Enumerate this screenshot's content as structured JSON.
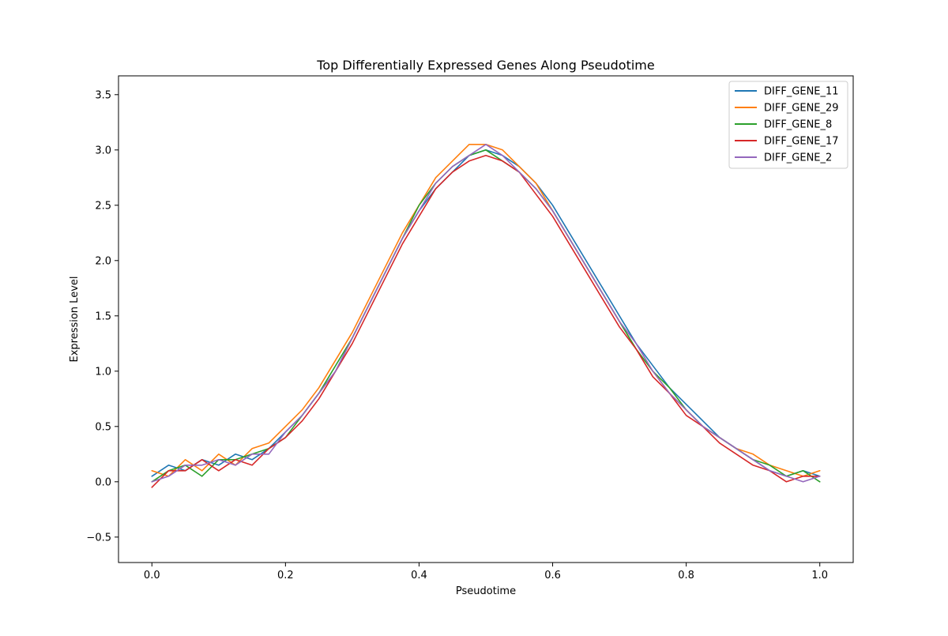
{
  "chart_data": {
    "type": "line",
    "title": "Top Differentially Expressed Genes Along Pseudotime",
    "xlabel": "Pseudotime",
    "ylabel": "Expression Level",
    "xlim": [
      -0.05,
      1.05
    ],
    "ylim": [
      -0.73,
      3.67
    ],
    "xticks": [
      0.0,
      0.2,
      0.4,
      0.6,
      0.8,
      1.0
    ],
    "xtick_labels": [
      "0.0",
      "0.2",
      "0.4",
      "0.6",
      "0.8",
      "1.0"
    ],
    "yticks": [
      -0.5,
      0.0,
      0.5,
      1.0,
      1.5,
      2.0,
      2.5,
      3.0,
      3.5
    ],
    "ytick_labels": [
      "−0.5",
      "0.0",
      "0.5",
      "1.0",
      "1.5",
      "2.0",
      "2.5",
      "3.0",
      "3.5"
    ],
    "grid": false,
    "legend_position": "top-right",
    "x": [
      0.0,
      0.025,
      0.05,
      0.075,
      0.1,
      0.125,
      0.15,
      0.175,
      0.2,
      0.225,
      0.25,
      0.275,
      0.3,
      0.325,
      0.35,
      0.375,
      0.4,
      0.425,
      0.45,
      0.475,
      0.5,
      0.525,
      0.55,
      0.575,
      0.6,
      0.625,
      0.65,
      0.675,
      0.7,
      0.725,
      0.75,
      0.775,
      0.8,
      0.825,
      0.85,
      0.875,
      0.9,
      0.925,
      0.95,
      0.975,
      1.0
    ],
    "series": [
      {
        "name": "DIFF_GENE_11",
        "color": "#1f77b4",
        "values": [
          0.05,
          0.15,
          0.1,
          0.2,
          0.15,
          0.25,
          0.2,
          0.3,
          0.45,
          0.6,
          0.8,
          1.0,
          1.3,
          1.6,
          1.9,
          2.2,
          2.45,
          2.65,
          2.8,
          2.95,
          3.0,
          2.95,
          2.85,
          2.7,
          2.5,
          2.25,
          2.0,
          1.75,
          1.5,
          1.25,
          1.05,
          0.85,
          0.7,
          0.55,
          0.4,
          0.3,
          0.2,
          0.1,
          0.05,
          0.1,
          0.05
        ]
      },
      {
        "name": "DIFF_GENE_29",
        "color": "#ff7f0e",
        "values": [
          0.1,
          0.05,
          0.2,
          0.1,
          0.25,
          0.15,
          0.3,
          0.35,
          0.5,
          0.65,
          0.85,
          1.1,
          1.35,
          1.65,
          1.95,
          2.25,
          2.5,
          2.75,
          2.9,
          3.05,
          3.05,
          3.0,
          2.85,
          2.7,
          2.45,
          2.2,
          1.95,
          1.7,
          1.45,
          1.2,
          1.0,
          0.8,
          0.65,
          0.5,
          0.4,
          0.3,
          0.25,
          0.15,
          0.1,
          0.05,
          0.1
        ]
      },
      {
        "name": "DIFF_GENE_8",
        "color": "#2ca02c",
        "values": [
          0.0,
          0.1,
          0.15,
          0.05,
          0.2,
          0.2,
          0.25,
          0.3,
          0.4,
          0.6,
          0.8,
          1.05,
          1.3,
          1.6,
          1.9,
          2.2,
          2.5,
          2.7,
          2.85,
          2.95,
          3.0,
          2.9,
          2.8,
          2.65,
          2.45,
          2.2,
          1.95,
          1.7,
          1.45,
          1.2,
          1.0,
          0.85,
          0.65,
          0.5,
          0.4,
          0.3,
          0.2,
          0.15,
          0.05,
          0.1,
          0.0
        ]
      },
      {
        "name": "DIFF_GENE_17",
        "color": "#d62728",
        "values": [
          -0.05,
          0.1,
          0.1,
          0.2,
          0.1,
          0.2,
          0.15,
          0.3,
          0.4,
          0.55,
          0.75,
          1.0,
          1.25,
          1.55,
          1.85,
          2.15,
          2.4,
          2.65,
          2.8,
          2.9,
          2.95,
          2.9,
          2.8,
          2.6,
          2.4,
          2.15,
          1.9,
          1.65,
          1.4,
          1.2,
          0.95,
          0.8,
          0.6,
          0.5,
          0.35,
          0.25,
          0.15,
          0.1,
          0.0,
          0.05,
          0.05
        ]
      },
      {
        "name": "DIFF_GENE_2",
        "color": "#9467bd",
        "values": [
          0.0,
          0.05,
          0.15,
          0.15,
          0.2,
          0.15,
          0.25,
          0.25,
          0.45,
          0.6,
          0.8,
          1.0,
          1.3,
          1.6,
          1.9,
          2.2,
          2.45,
          2.7,
          2.85,
          2.95,
          3.05,
          2.95,
          2.8,
          2.65,
          2.45,
          2.2,
          1.95,
          1.7,
          1.45,
          1.25,
          1.0,
          0.8,
          0.65,
          0.5,
          0.4,
          0.3,
          0.2,
          0.1,
          0.05,
          0.0,
          0.05
        ]
      }
    ]
  }
}
